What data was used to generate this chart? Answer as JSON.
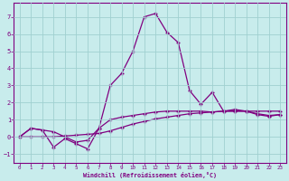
{
  "line1_x": [
    0,
    1,
    2,
    3,
    4,
    5,
    6,
    7,
    8,
    9,
    10,
    11,
    12,
    13,
    14,
    15,
    16,
    17,
    18,
    19,
    20,
    21,
    22,
    23
  ],
  "line1_y": [
    0.0,
    0.5,
    0.4,
    -0.6,
    -0.1,
    -0.4,
    -0.7,
    0.5,
    3.0,
    3.7,
    5.0,
    7.0,
    7.2,
    6.1,
    5.5,
    2.7,
    1.9,
    2.6,
    1.5,
    1.6,
    1.5,
    1.3,
    1.2,
    1.3
  ],
  "line2_x": [
    0,
    1,
    2,
    3,
    4,
    5,
    6,
    7,
    8,
    9,
    10,
    11,
    12,
    13,
    14,
    15,
    16,
    17,
    18,
    19,
    20,
    21,
    22,
    23
  ],
  "line2_y": [
    0.0,
    0.5,
    0.4,
    0.3,
    0.0,
    -0.3,
    -0.2,
    0.5,
    1.0,
    1.15,
    1.25,
    1.35,
    1.45,
    1.5,
    1.5,
    1.5,
    1.5,
    1.45,
    1.5,
    1.5,
    1.5,
    1.35,
    1.25,
    1.3
  ],
  "line3_x": [
    0,
    1,
    2,
    3,
    4,
    5,
    6,
    7,
    8,
    9,
    10,
    11,
    12,
    13,
    14,
    15,
    16,
    17,
    18,
    19,
    20,
    21,
    22,
    23
  ],
  "line3_y": [
    0.0,
    0.0,
    0.0,
    0.0,
    0.05,
    0.1,
    0.15,
    0.2,
    0.35,
    0.55,
    0.75,
    0.9,
    1.05,
    1.15,
    1.25,
    1.35,
    1.4,
    1.45,
    1.5,
    1.5,
    1.5,
    1.5,
    1.5,
    1.5
  ],
  "line_color": "#800080",
  "bg_color": "#c8ecec",
  "grid_color": "#a0d0d0",
  "xlabel": "Windchill (Refroidissement éolien,°C)",
  "xlim": [
    -0.5,
    23.5
  ],
  "ylim": [
    -1.5,
    7.8
  ],
  "yticks": [
    -1,
    0,
    1,
    2,
    3,
    4,
    5,
    6,
    7
  ],
  "xticks": [
    0,
    1,
    2,
    3,
    4,
    5,
    6,
    7,
    8,
    9,
    10,
    11,
    12,
    13,
    14,
    15,
    16,
    17,
    18,
    19,
    20,
    21,
    22,
    23
  ]
}
